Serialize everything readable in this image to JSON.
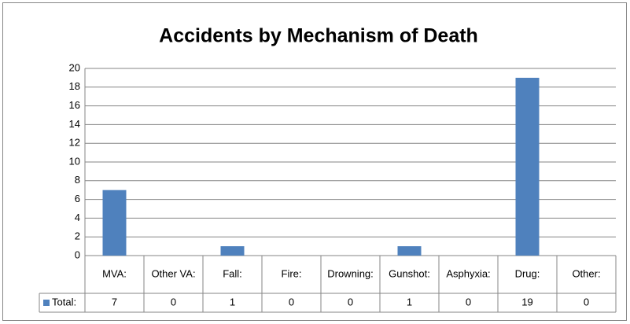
{
  "chart_data": {
    "type": "bar",
    "title": "Accidents by Mechanism of Death",
    "categories": [
      "MVA:",
      "Other VA:",
      "Fall:",
      "Fire:",
      "Drowning:",
      "Gunshot:",
      "Asphyxia:",
      "Drug:",
      "Other:"
    ],
    "series": [
      {
        "name": "Total:",
        "color": "#4f81bd",
        "values": [
          7,
          0,
          1,
          0,
          0,
          1,
          0,
          19,
          0
        ]
      }
    ],
    "ylim": [
      0,
      20
    ],
    "yticks": [
      0,
      2,
      4,
      6,
      8,
      10,
      12,
      14,
      16,
      18,
      20
    ],
    "grid": true,
    "data_table": true
  }
}
